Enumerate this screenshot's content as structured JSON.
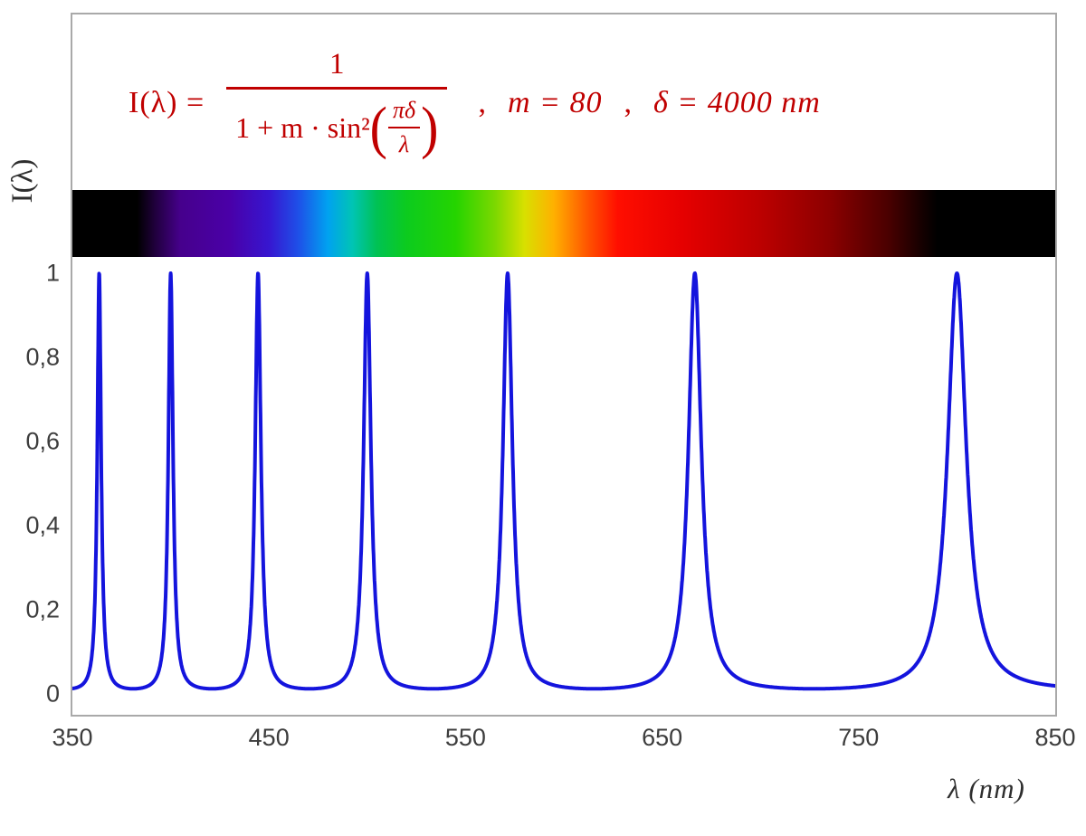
{
  "figure": {
    "y_axis_label": "I(λ)",
    "x_axis_label": "λ  (nm)",
    "formula": {
      "lhs": "I(λ) =",
      "numerator": "1",
      "den_text": "1 + m · sin²",
      "paren_open": "(",
      "inner_numerator": "πδ",
      "inner_denominator": "λ",
      "sep1": ",",
      "param_m": "m = 80",
      "sep2": ",",
      "param_delta": "δ = 4000 nm",
      "paren_close": ")"
    }
  },
  "chart_data": {
    "type": "line",
    "formula": "I(λ) = 1 / (1 + m·sin²(πδ/λ))",
    "parameters": {
      "m": 80,
      "delta_nm": 4000
    },
    "xlabel": "λ  (nm)",
    "ylabel": "I(λ)",
    "x_range_nm": [
      350,
      850
    ],
    "ylim": [
      0,
      1
    ],
    "x_ticks": [
      "350",
      "450",
      "550",
      "650",
      "750",
      "850"
    ],
    "y_ticks": [
      "1",
      "0,8",
      "0,6",
      "0,4",
      "0,2",
      "0"
    ],
    "grid": false,
    "legend": false,
    "line_color": "#1414dd",
    "formula_color": "#c00000",
    "frame_color": "#a9a9a9",
    "sample_step_nm": 0.1,
    "peak_wavelengths_nm": [
      363.64,
      400,
      444.44,
      500,
      571.43,
      666.67,
      800
    ],
    "peak_intensity": 1,
    "baseline_intensity": 0.0123,
    "spectrum_bar": {
      "description": "visible-spectrum strip spanning 350–850 nm, black outside ~385–780 nm",
      "stops": [
        [
          0,
          "#000000"
        ],
        [
          6.6,
          "#000000"
        ],
        [
          8.4,
          "#20003c"
        ],
        [
          11,
          "#46008c"
        ],
        [
          16,
          "#4a00a8"
        ],
        [
          20,
          "#3716d0"
        ],
        [
          23,
          "#1e50e8"
        ],
        [
          26,
          "#00a2f0"
        ],
        [
          28.5,
          "#00c4b4"
        ],
        [
          31,
          "#00c253"
        ],
        [
          34,
          "#0ccb1e"
        ],
        [
          39,
          "#25d400"
        ],
        [
          43,
          "#7cd800"
        ],
        [
          46,
          "#d8e000"
        ],
        [
          49,
          "#ffb000"
        ],
        [
          52.5,
          "#ff5200"
        ],
        [
          55.5,
          "#ff0e00"
        ],
        [
          62,
          "#e60000"
        ],
        [
          70,
          "#bc0000"
        ],
        [
          77,
          "#8c0000"
        ],
        [
          83,
          "#4a0000"
        ],
        [
          86.5,
          "#140000"
        ],
        [
          88,
          "#000000"
        ],
        [
          100,
          "#000000"
        ]
      ]
    }
  }
}
